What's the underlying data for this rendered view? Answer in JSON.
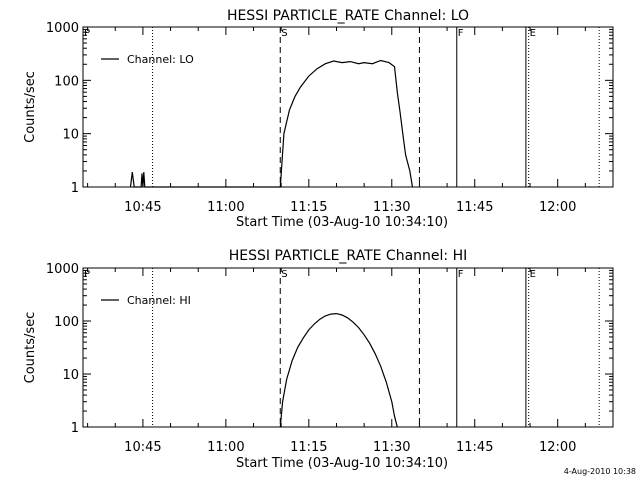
{
  "chart_data": [
    {
      "type": "line",
      "title": "HESSI PARTICLE_RATE Channel: LO",
      "xlabel": "Start Time (03-Aug-10 10:34:10)",
      "ylabel": "Counts/sec",
      "yscale": "log",
      "ylim": [
        1,
        1000
      ],
      "xlim": [
        "10:34:10",
        "12:10:00"
      ],
      "xticks": [
        "10:45",
        "11:00",
        "11:15",
        "11:30",
        "11:45",
        "12:00"
      ],
      "yticks": [
        "1",
        "10",
        "100",
        "1000"
      ],
      "legend": {
        "position": "top-left",
        "entries": [
          "Channel: LO"
        ]
      },
      "grid": false,
      "markers": [
        {
          "time": "10:34:10",
          "label": "P",
          "style": "dotted"
        },
        {
          "time": "10:46:45",
          "label": "",
          "style": "dotted"
        },
        {
          "time": "11:09:50",
          "label": "S",
          "style": "dashed"
        },
        {
          "time": "11:35:00",
          "label": "",
          "style": "dashed"
        },
        {
          "time": "11:41:45",
          "label": "F",
          "style": "solid"
        },
        {
          "time": "11:54:15",
          "label": "",
          "style": "solid"
        },
        {
          "time": "11:54:45",
          "label": "E",
          "style": "dotted"
        },
        {
          "time": "12:07:30",
          "label": "",
          "style": "dotted"
        }
      ],
      "series": [
        {
          "name": "Channel: LO",
          "x": [
            "10:42:45",
            "10:43:05",
            "10:43:25",
            "10:44:40",
            "10:44:50",
            "10:45:00",
            "10:45:10",
            "10:45:20",
            "10:45:30",
            "11:09:50",
            "11:10:30",
            "11:11:30",
            "11:12:30",
            "11:13:30",
            "11:15:00",
            "11:16:30",
            "11:18:00",
            "11:19:30",
            "11:21:00",
            "11:22:30",
            "11:24:00",
            "11:25:00",
            "11:26:30",
            "11:28:00",
            "11:29:30",
            "11:30:30",
            "11:31:00",
            "11:31:30",
            "11:32:00",
            "11:32:30",
            "11:33:15",
            "11:33:45"
          ],
          "values": [
            1,
            1.9,
            1,
            1,
            1.8,
            1,
            1.9,
            1,
            1,
            1,
            10,
            28,
            50,
            75,
            120,
            165,
            205,
            230,
            215,
            225,
            205,
            215,
            205,
            235,
            215,
            180,
            60,
            25,
            10,
            4,
            2,
            1
          ]
        }
      ]
    },
    {
      "type": "line",
      "title": "HESSI PARTICLE_RATE Channel: HI",
      "xlabel": "Start Time (03-Aug-10 10:34:10)",
      "ylabel": "Counts/sec",
      "yscale": "log",
      "ylim": [
        1,
        1000
      ],
      "xlim": [
        "10:34:10",
        "12:10:00"
      ],
      "xticks": [
        "10:45",
        "11:00",
        "11:15",
        "11:30",
        "11:45",
        "12:00"
      ],
      "yticks": [
        "1",
        "10",
        "100",
        "1000"
      ],
      "legend": {
        "position": "top-left",
        "entries": [
          "Channel: HI"
        ]
      },
      "grid": false,
      "markers": [
        {
          "time": "10:34:10",
          "label": "P",
          "style": "dotted"
        },
        {
          "time": "10:46:45",
          "label": "",
          "style": "dotted"
        },
        {
          "time": "11:09:50",
          "label": "S",
          "style": "dashed"
        },
        {
          "time": "11:35:00",
          "label": "",
          "style": "dashed"
        },
        {
          "time": "11:41:45",
          "label": "F",
          "style": "solid"
        },
        {
          "time": "11:54:15",
          "label": "",
          "style": "solid"
        },
        {
          "time": "11:54:45",
          "label": "E",
          "style": "dotted"
        },
        {
          "time": "12:07:30",
          "label": "",
          "style": "dotted"
        }
      ],
      "series": [
        {
          "name": "Channel: HI",
          "x": [
            "11:09:50",
            "11:10:15",
            "11:11:00",
            "11:12:00",
            "11:13:00",
            "11:14:00",
            "11:15:00",
            "11:16:00",
            "11:17:00",
            "11:18:00",
            "11:19:00",
            "11:20:00",
            "11:21:00",
            "11:22:00",
            "11:23:00",
            "11:24:00",
            "11:25:00",
            "11:26:00",
            "11:27:00",
            "11:28:00",
            "11:29:00",
            "11:30:00",
            "11:30:30",
            "11:31:00"
          ],
          "values": [
            1,
            3,
            8,
            18,
            32,
            48,
            68,
            88,
            108,
            125,
            135,
            138,
            130,
            115,
            95,
            75,
            55,
            38,
            24,
            14,
            7,
            3,
            1.6,
            1
          ]
        }
      ]
    }
  ],
  "footer": {
    "timestamp": "4-Aug-2010 10:38"
  }
}
